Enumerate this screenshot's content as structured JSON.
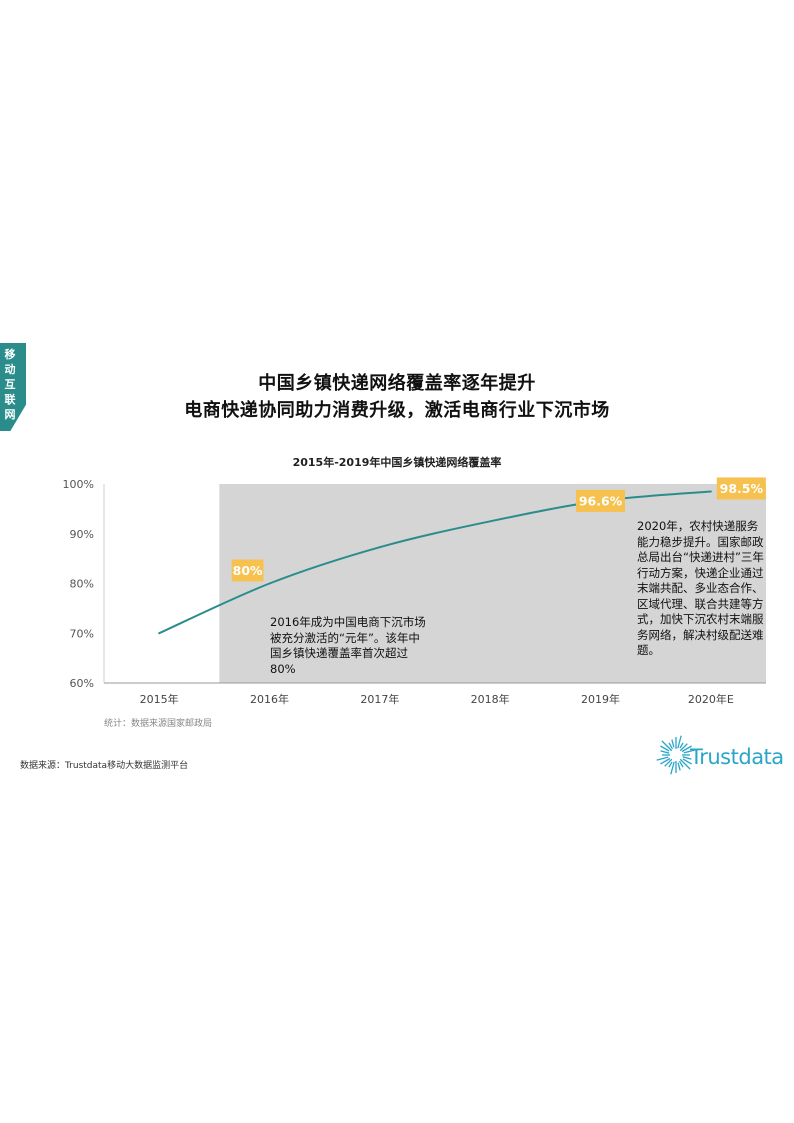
{
  "side_tab": {
    "label": "移动互联网"
  },
  "titles": {
    "line1": "中国乡镇快递网络覆盖率逐年提升",
    "line2": "电商快递协同助力消费升级，激活电商行业下沉市场"
  },
  "colors": {
    "accent": "#2a8d8c",
    "callout": "#f6c14e",
    "shade": "#d5d5d5"
  },
  "chart_data": {
    "type": "line",
    "title": "2015年-2019年中国乡镇快递网络覆盖率",
    "categories": [
      "2015年",
      "2016年",
      "2017年",
      "2018年",
      "2019年",
      "2020年E"
    ],
    "values": [
      70,
      80,
      87.3,
      92.5,
      96.6,
      98.5
    ],
    "yticks": [
      "60%",
      "70%",
      "80%",
      "90%",
      "100%"
    ],
    "ylim": [
      60,
      100
    ],
    "callouts": [
      {
        "index": 1,
        "label": "80%"
      },
      {
        "index": 4,
        "label": "96.6%"
      },
      {
        "index": 5,
        "label": "98.5%"
      }
    ],
    "grid": false,
    "shaded_from_index": 1
  },
  "annotations": {
    "note_2016": "2016年成为中国电商下沉市场被充分激活的“元年”。该年中国乡镇快递覆盖率首次超过80%",
    "note_2020": "2020年，农村快递服务能力稳步提升。国家邮政总局出台“快递进村”三年行动方案，快递企业通过末端共配、多业态合作、区域代理、联合共建等方式，加快下沉农村末端服务网络，解决村级配送难题。"
  },
  "footer": {
    "stat_note": "统计：数据来源国家邮政局",
    "source": "数据来源：Trustdata移动大数据监测平台",
    "logo_text": "Trustdata"
  }
}
